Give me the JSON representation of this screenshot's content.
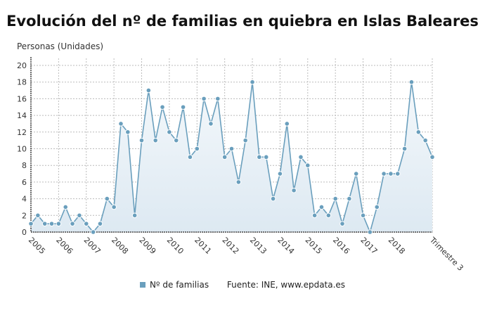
{
  "chart_data": {
    "type": "area",
    "title": "Evolución del nº de familias en quiebra en Islas Baleares",
    "ylabel": "Personas (Unidades)",
    "xlabel": "",
    "ylim": [
      0,
      20
    ],
    "yticks": [
      0,
      2,
      4,
      6,
      8,
      10,
      12,
      14,
      16,
      18,
      20
    ],
    "xtick_labels": [
      "2005",
      "2006",
      "2007",
      "2008",
      "2009",
      "2010",
      "2011",
      "2012",
      "2013",
      "2014",
      "2015",
      "2016",
      "2017",
      "2018",
      "Trimestre 3"
    ],
    "grid": true,
    "legend_position": "bottom",
    "series": [
      {
        "name": "Nº de familias",
        "color": "#6a9fbd",
        "values": [
          1,
          2,
          1,
          1,
          1,
          3,
          1,
          2,
          1,
          0,
          1,
          4,
          3,
          13,
          12,
          2,
          11,
          17,
          11,
          15,
          12,
          11,
          15,
          9,
          10,
          16,
          13,
          16,
          9,
          10,
          6,
          11,
          18,
          9,
          9,
          4,
          7,
          13,
          5,
          9,
          8,
          2,
          3,
          2,
          4,
          1,
          4,
          7,
          2,
          0,
          3,
          7,
          7,
          7,
          10,
          18,
          12,
          11,
          9
        ]
      }
    ],
    "source": "Fuente: INE, www.epdata.es"
  }
}
